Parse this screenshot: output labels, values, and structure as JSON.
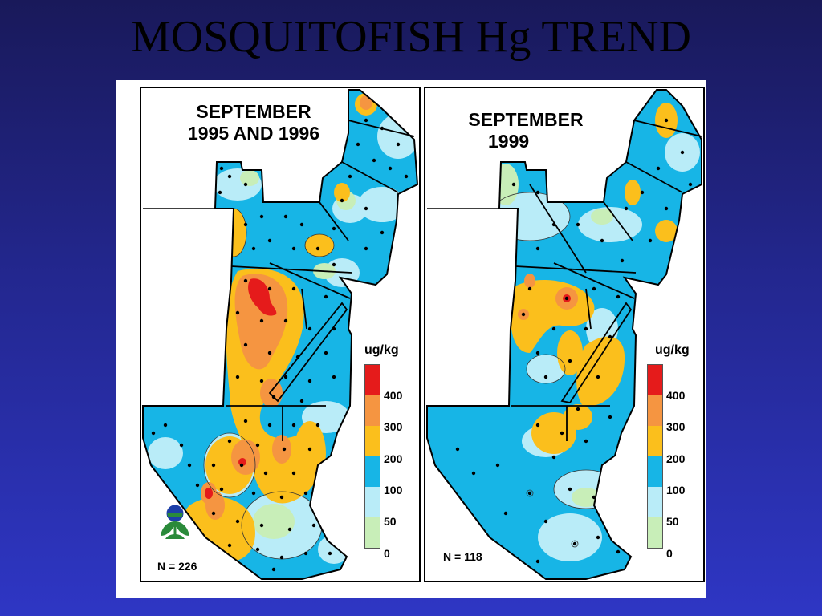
{
  "slide": {
    "title": "MOSQUITOFISH Hg TREND"
  },
  "colors": {
    "background_top": "#19195a",
    "background_bottom": "#2e36c4",
    "class_0_50": "#c8eeb8",
    "class_50_100": "#b9ecf8",
    "class_100_200": "#17b5e6",
    "class_200_300": "#fbbf1c",
    "class_300_400": "#f59541",
    "class_400_plus": "#e51b1b"
  },
  "maps": [
    {
      "title_line1": "SEPTEMBER",
      "title_line2": "1995 AND 1996",
      "legend_unit": "ug/kg",
      "legend_ticks": [
        "400",
        "300",
        "200",
        "100",
        "50",
        "0"
      ],
      "sample_count": "N = 226",
      "has_logo": true
    },
    {
      "title_line1": "SEPTEMBER",
      "title_line2": "1999",
      "legend_unit": "ug/kg",
      "legend_ticks": [
        "400",
        "300",
        "200",
        "100",
        "50",
        "0"
      ],
      "sample_count": "N = 118",
      "has_logo": false
    }
  ],
  "legend_classes": [
    "400+",
    "300-400",
    "200-300",
    "100-200",
    "50-100",
    "0-50"
  ]
}
